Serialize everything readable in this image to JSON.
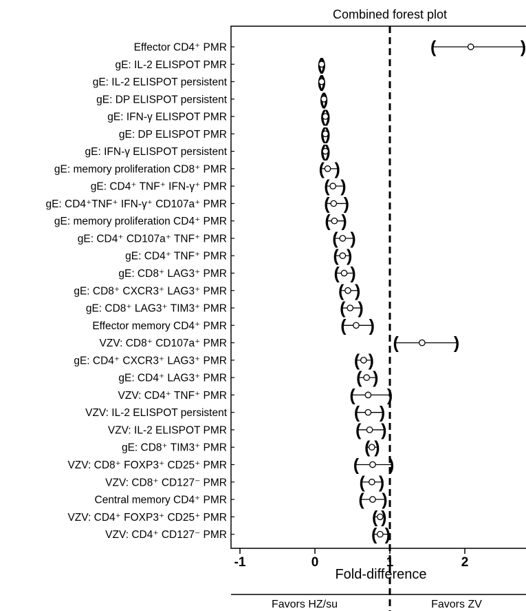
{
  "chart_data": {
    "type": "forest",
    "title": "Combined forest plot",
    "xlabel": "Fold-difference",
    "xlim": [
      -1.2,
      2.8
    ],
    "reference_line": 1,
    "xticks": [
      "-1",
      "0",
      "1",
      "2"
    ],
    "xtick_values": [
      -1,
      0,
      1,
      2
    ],
    "favors_left": "Favors HZ/su",
    "favors_right": "Favors ZV",
    "rows": [
      {
        "label": "Effector CD4⁺ PMR",
        "est": 2.08,
        "lo": 1.58,
        "hi": 2.78
      },
      {
        "label": "gE: IL-2 ELISPOT PMR",
        "est": 0.09,
        "lo": 0.07,
        "hi": 0.11
      },
      {
        "label": "gE: IL-2 ELISPOT persistent",
        "est": 0.09,
        "lo": 0.07,
        "hi": 0.11
      },
      {
        "label": "gE: DP ELISPOT persistent",
        "est": 0.12,
        "lo": 0.1,
        "hi": 0.14
      },
      {
        "label": "gE: IFN-γ ELISPOT PMR",
        "est": 0.14,
        "lo": 0.11,
        "hi": 0.17
      },
      {
        "label": "gE: DP ELISPOT PMR",
        "est": 0.14,
        "lo": 0.11,
        "hi": 0.17
      },
      {
        "label": "gE: IFN-γ ELISPOT persistent",
        "est": 0.14,
        "lo": 0.11,
        "hi": 0.17
      },
      {
        "label": "gE: memory proliferation CD8⁺ PMR",
        "est": 0.17,
        "lo": 0.09,
        "hi": 0.3
      },
      {
        "label": "gE: CD4⁺ TNF⁺ IFN-γ⁺ PMR",
        "est": 0.24,
        "lo": 0.16,
        "hi": 0.38
      },
      {
        "label": "gE: CD4⁺TNF⁺ IFN-γ⁺ CD107a⁺ PMR",
        "est": 0.25,
        "lo": 0.16,
        "hi": 0.42
      },
      {
        "label": "gE: memory proliferation CD4⁺ PMR",
        "est": 0.26,
        "lo": 0.17,
        "hi": 0.39
      },
      {
        "label": "gE: CD4⁺ CD107a⁺ TNF⁺ PMR",
        "est": 0.37,
        "lo": 0.27,
        "hi": 0.51
      },
      {
        "label": "gE: CD4⁺ TNF⁺ PMR",
        "est": 0.37,
        "lo": 0.28,
        "hi": 0.46
      },
      {
        "label": "gE: CD8⁺ LAG3⁺ PMR",
        "est": 0.39,
        "lo": 0.29,
        "hi": 0.51
      },
      {
        "label": "gE: CD8⁺ CXCR3⁺ LAG3⁺ PMR",
        "est": 0.44,
        "lo": 0.35,
        "hi": 0.57
      },
      {
        "label": "gE: CD8⁺ LAG3⁺ TIM3⁺ PMR",
        "est": 0.47,
        "lo": 0.37,
        "hi": 0.61
      },
      {
        "label": "Effector memory CD4⁺ PMR",
        "est": 0.55,
        "lo": 0.38,
        "hi": 0.76
      },
      {
        "label": "VZV: CD8⁺ CD107a⁺ PMR",
        "est": 1.43,
        "lo": 1.08,
        "hi": 1.89
      },
      {
        "label": "gE: CD4⁺ CXCR3⁺ LAG3⁺ PMR",
        "est": 0.65,
        "lo": 0.56,
        "hi": 0.75
      },
      {
        "label": "gE: CD4⁺ LAG3⁺ PMR",
        "est": 0.69,
        "lo": 0.59,
        "hi": 0.81
      },
      {
        "label": "VZV: CD4⁺ TNF⁺ PMR",
        "est": 0.71,
        "lo": 0.5,
        "hi": 1.0
      },
      {
        "label": "VZV: IL-2 ELISPOT persistent",
        "est": 0.71,
        "lo": 0.56,
        "hi": 0.9
      },
      {
        "label": "VZV: IL-2 ELISPOT PMR",
        "est": 0.73,
        "lo": 0.58,
        "hi": 0.92
      },
      {
        "label": "gE: CD8⁺ TIM3⁺ PMR",
        "est": 0.76,
        "lo": 0.7,
        "hi": 0.83
      },
      {
        "label": "VZV: CD8⁺ FOXP3⁺ CD25⁺ PMR",
        "est": 0.77,
        "lo": 0.55,
        "hi": 1.02
      },
      {
        "label": "VZV: CD8⁺ CD127⁻ PMR",
        "est": 0.76,
        "lo": 0.63,
        "hi": 0.89
      },
      {
        "label": "Central memory CD4⁺ PMR",
        "est": 0.77,
        "lo": 0.62,
        "hi": 0.93
      },
      {
        "label": "VZV: CD4⁺ FOXP3⁺ CD25⁺ PMR",
        "est": 0.87,
        "lo": 0.8,
        "hi": 0.92
      },
      {
        "label": "VZV: CD4⁺ CD127⁻ PMR",
        "est": 0.87,
        "lo": 0.79,
        "hi": 0.97
      }
    ]
  }
}
